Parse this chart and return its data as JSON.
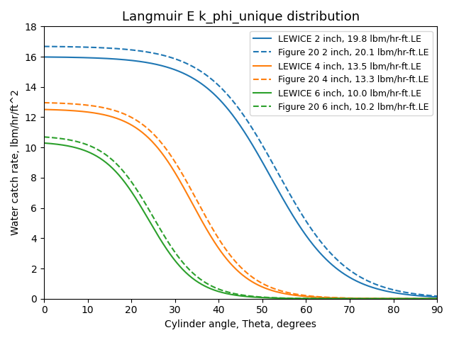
{
  "title": "Langmuir E k_phi_unique distribution",
  "xlabel": "Cylinder angle, Theta, degrees",
  "ylabel": "Water catch rate, lbm/hr/ft^2",
  "xlim": [
    0,
    90
  ],
  "ylim": [
    0,
    18
  ],
  "colors": {
    "blue": "#1f77b4",
    "orange": "#ff7f0e",
    "green": "#2ca02c"
  },
  "series": [
    {
      "label": "LEWICE 2 inch, 19.8 lbm/hr-ft.LE",
      "color": "blue",
      "linestyle": "solid",
      "A": 16.0,
      "theta0": 52.0,
      "k": 0.13
    },
    {
      "label": "Figure 20 2 inch, 20.1 lbm/hr-ft.LE",
      "color": "blue",
      "linestyle": "dashed",
      "A": 16.7,
      "theta0": 53.5,
      "k": 0.125
    },
    {
      "label": "LEWICE 4 inch, 13.5 lbm/hr-ft.LE",
      "color": "orange",
      "linestyle": "solid",
      "A": 12.55,
      "theta0": 34.0,
      "k": 0.17
    },
    {
      "label": "Figure 20 4 inch, 13.3 lbm/hr-ft.LE",
      "color": "orange",
      "linestyle": "dashed",
      "A": 13.0,
      "theta0": 35.0,
      "k": 0.165
    },
    {
      "label": "LEWICE 6 inch, 10.0 lbm/hr-ft.LE",
      "color": "green",
      "linestyle": "solid",
      "A": 10.4,
      "theta0": 24.0,
      "k": 0.19
    },
    {
      "label": "Figure 20 6 inch, 10.2 lbm/hr-ft.LE",
      "color": "green",
      "linestyle": "dashed",
      "A": 10.8,
      "theta0": 25.0,
      "k": 0.185
    }
  ],
  "legend_fontsize": 9,
  "title_fontsize": 13
}
